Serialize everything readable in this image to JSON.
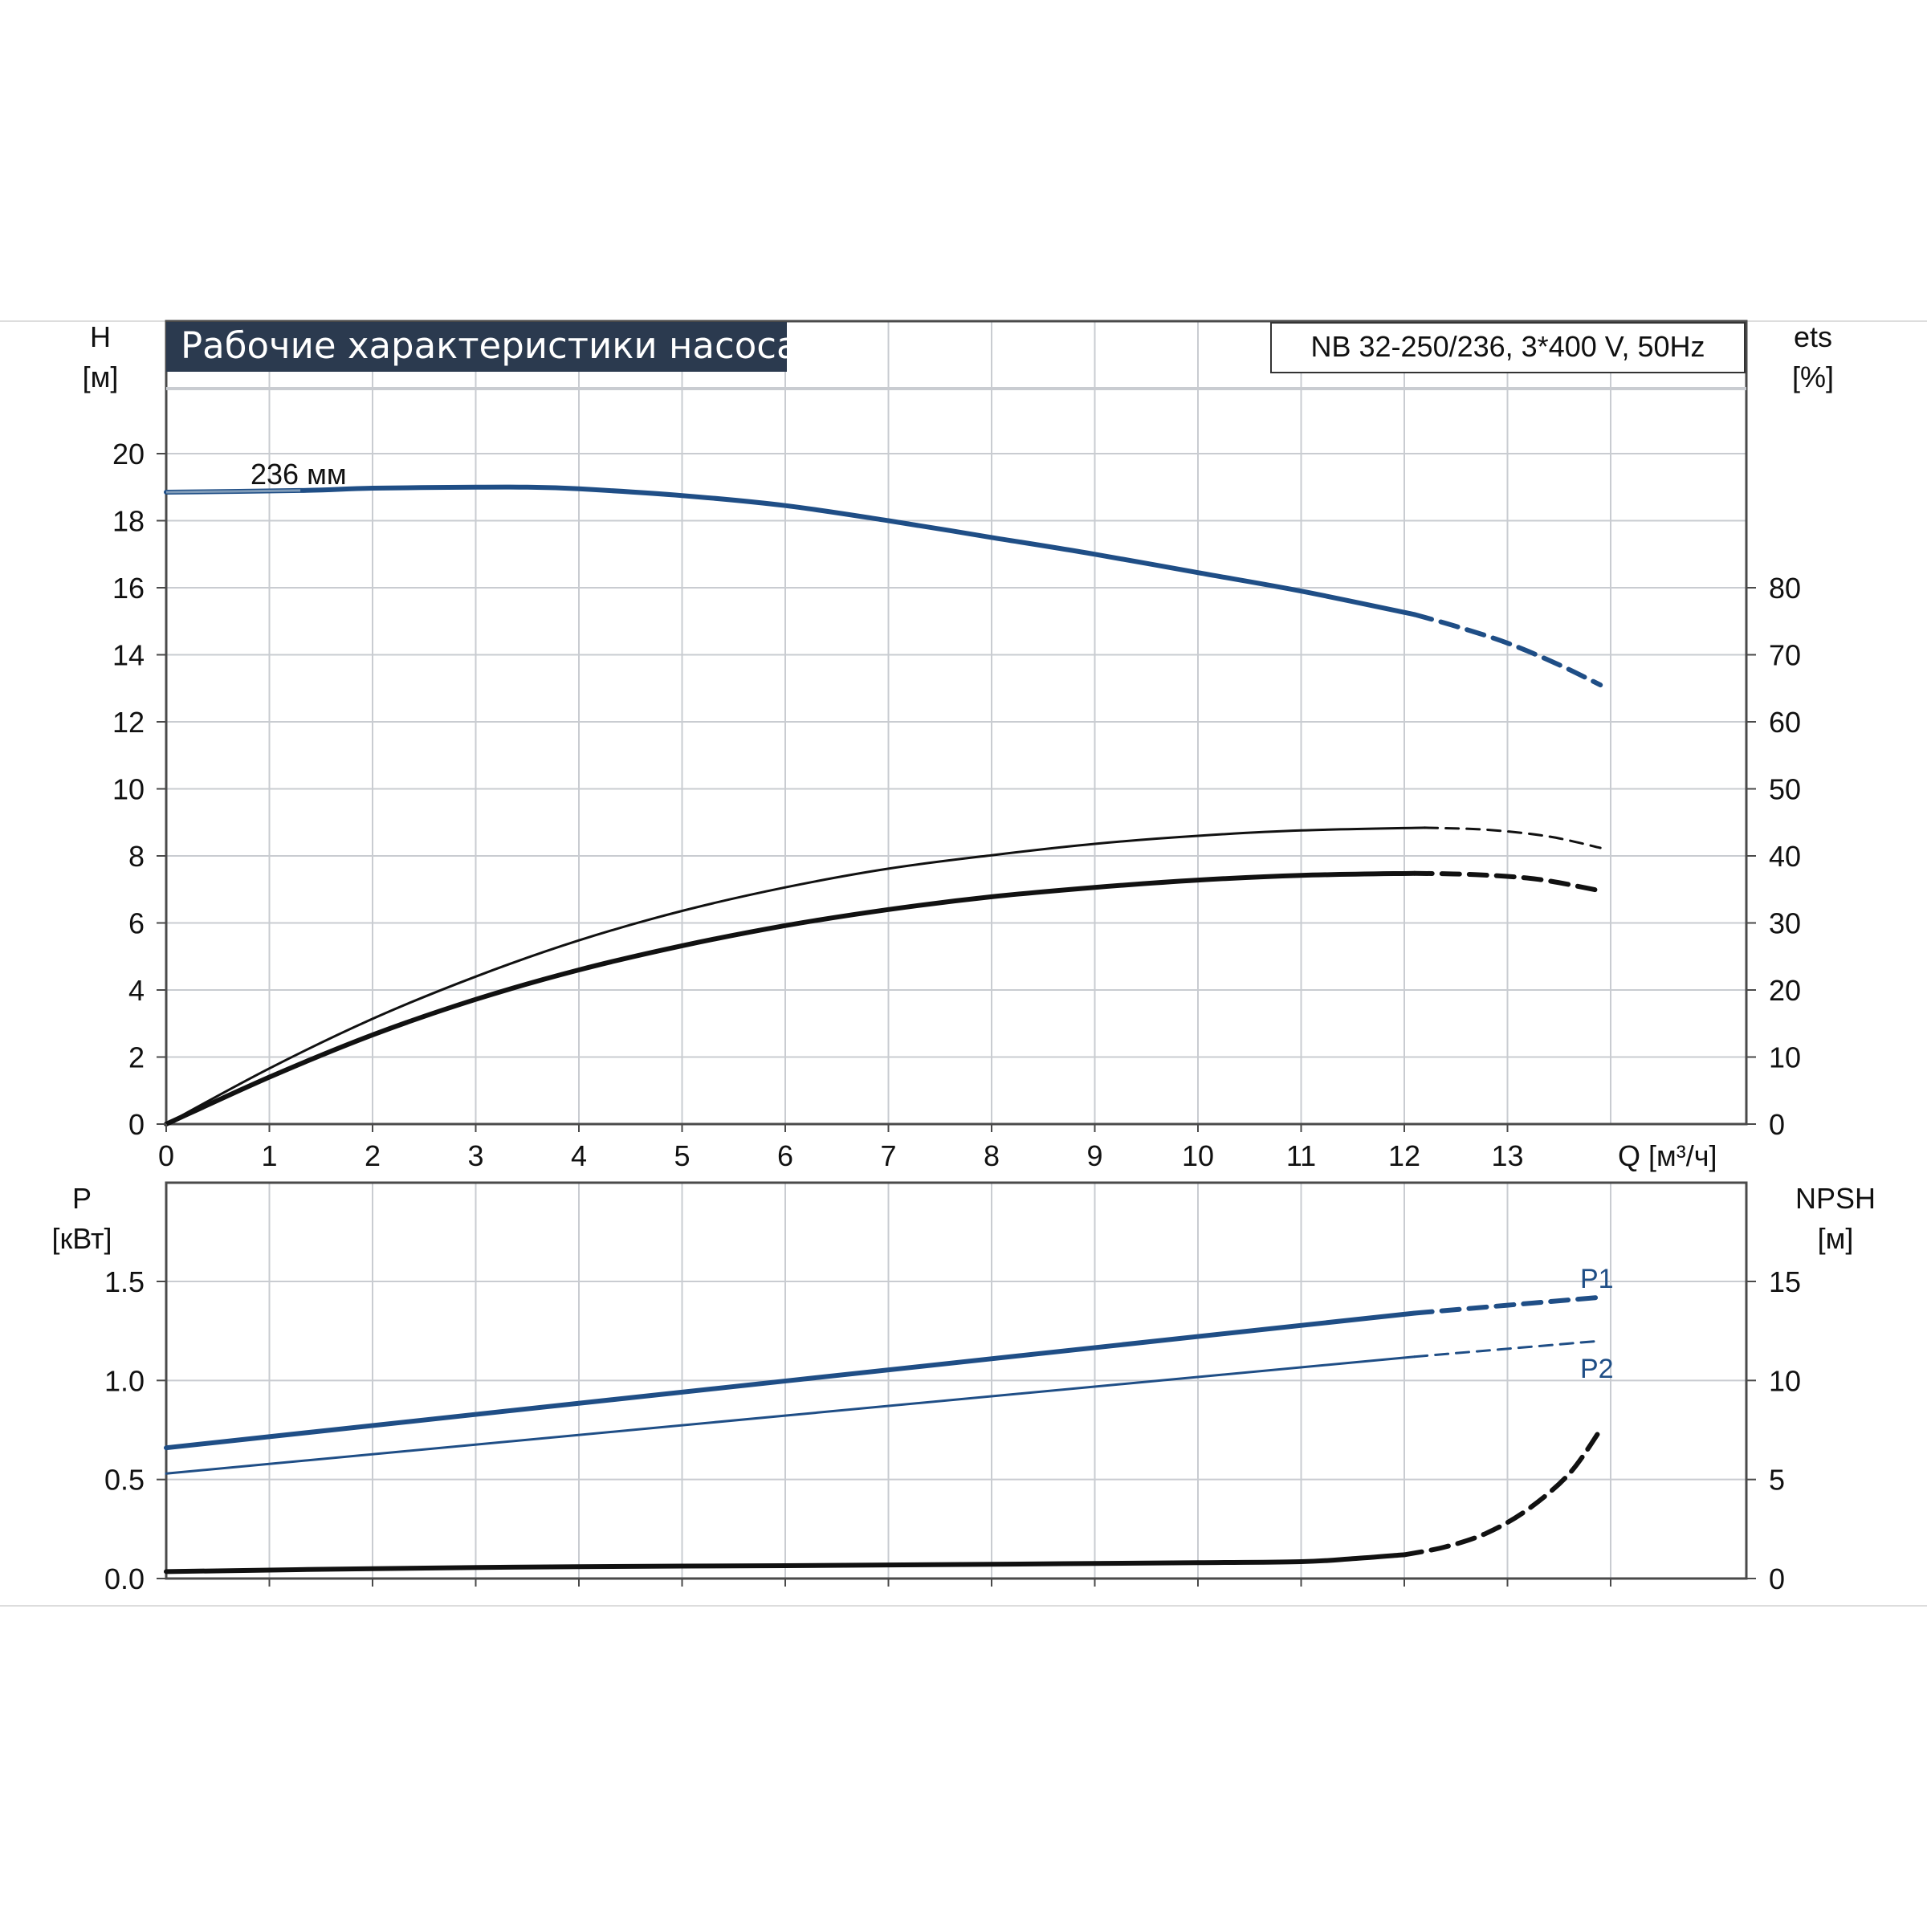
{
  "colors": {
    "blue": "#1f4e86",
    "title_bg": "#2b3a4f",
    "title_fg": "#ffffff",
    "grid": "#c9ccd1",
    "frame": "#4a4a4a",
    "black": "#111111"
  },
  "chart_data": [
    {
      "type": "line",
      "title": "Рабочие характеристики насоса",
      "model_label": "NB 32-250/236, 3*400 V, 50Hz",
      "xlabel": "Q [м³/ч]",
      "xlim": [
        0,
        15
      ],
      "xticks": [
        "0",
        "1",
        "2",
        "3",
        "4",
        "5",
        "6",
        "7",
        "8",
        "9",
        "10",
        "11",
        "12",
        "13"
      ],
      "left_axis": {
        "label_top": "H",
        "label_unit": "[м]",
        "ylim": [
          0,
          22
        ],
        "ticks": [
          "0",
          "2",
          "4",
          "6",
          "8",
          "10",
          "12",
          "14",
          "16",
          "18",
          "20"
        ]
      },
      "right_axis": {
        "label_top": "ets",
        "label_unit": "[%]",
        "ylim": [
          0,
          110
        ],
        "ticks": [
          "0",
          "10",
          "20",
          "30",
          "40",
          "50",
          "60",
          "70",
          "80"
        ]
      },
      "grid": true,
      "annotations": [
        "236 мм"
      ],
      "series": [
        {
          "name": "236 мм",
          "axis": "left",
          "color": "#1f4e86",
          "style": "solid",
          "x": [
            0,
            1.3,
            2,
            3,
            3.5,
            4,
            5,
            6,
            7,
            8,
            9,
            10,
            11,
            12.1
          ],
          "y": [
            18.85,
            18.9,
            18.97,
            19.0,
            19.0,
            18.95,
            18.75,
            18.45,
            18.0,
            17.5,
            17.0,
            16.45,
            15.9,
            15.2
          ]
        },
        {
          "axis": "left",
          "color": "#1f4e86",
          "style": "dashed",
          "x": [
            12.1,
            12.5,
            13,
            13.5,
            13.9
          ],
          "y": [
            15.2,
            14.85,
            14.35,
            13.7,
            13.1
          ]
        },
        {
          "axis": "right",
          "color": "#111111",
          "style": "solid",
          "width": "thin",
          "x": [
            0,
            1,
            2,
            3,
            4,
            5,
            6,
            7,
            8,
            9,
            10,
            11,
            12.2
          ],
          "y": [
            0,
            8.3,
            15.7,
            22.0,
            27.4,
            31.8,
            35.3,
            38.1,
            40.1,
            41.8,
            43.0,
            43.8,
            44.2
          ]
        },
        {
          "axis": "right",
          "color": "#111111",
          "style": "dashed",
          "width": "thin",
          "x": [
            12.2,
            12.8,
            13.4,
            13.9
          ],
          "y": [
            44.2,
            43.9,
            42.9,
            41.2
          ]
        },
        {
          "axis": "right",
          "color": "#111111",
          "style": "solid",
          "width": "thick",
          "x": [
            0,
            1,
            2,
            3,
            4,
            5,
            6,
            7,
            8,
            9,
            10,
            11,
            12.1
          ],
          "y": [
            0,
            7.0,
            13.3,
            18.6,
            23.0,
            26.6,
            29.6,
            32.0,
            33.9,
            35.3,
            36.4,
            37.1,
            37.4
          ]
        },
        {
          "axis": "right",
          "color": "#111111",
          "style": "dashed",
          "width": "thick",
          "x": [
            12.1,
            12.7,
            13.3,
            13.9
          ],
          "y": [
            37.4,
            37.2,
            36.5,
            34.8
          ]
        }
      ]
    },
    {
      "type": "line",
      "xlim": [
        0,
        15
      ],
      "left_axis": {
        "label_top": "P",
        "label_unit": "[кВт]",
        "ylim": [
          0,
          1.98
        ],
        "ticks": [
          "0.0",
          "0.5",
          "1.0",
          "1.5"
        ]
      },
      "right_axis": {
        "label_top": "NPSH",
        "label_unit": "[м]",
        "ylim": [
          0,
          19.8
        ],
        "ticks": [
          "0",
          "5",
          "10",
          "15"
        ]
      },
      "grid": true,
      "series": [
        {
          "name": "P1",
          "axis": "left",
          "color": "#1f4e86",
          "style": "solid",
          "width": "thick",
          "x": [
            0,
            12.1
          ],
          "y": [
            0.66,
            1.34
          ]
        },
        {
          "name": "P1",
          "axis": "left",
          "color": "#1f4e86",
          "style": "dashed",
          "width": "thick",
          "x": [
            12.1,
            13.9
          ],
          "y": [
            1.34,
            1.42
          ]
        },
        {
          "name": "P2",
          "axis": "left",
          "color": "#1f4e86",
          "style": "solid",
          "width": "thin",
          "x": [
            0,
            12.1
          ],
          "y": [
            0.53,
            1.12
          ]
        },
        {
          "name": "P2",
          "axis": "left",
          "color": "#1f4e86",
          "style": "dashed",
          "width": "thin",
          "x": [
            12.1,
            13.9
          ],
          "y": [
            1.12,
            1.2
          ]
        },
        {
          "axis": "right",
          "color": "#111111",
          "style": "solid",
          "width": "thick",
          "x": [
            0,
            2,
            4,
            6,
            8,
            10,
            11,
            11.5,
            12.0
          ],
          "y": [
            0.35,
            0.5,
            0.6,
            0.65,
            0.72,
            0.8,
            0.85,
            1.0,
            1.2
          ]
        },
        {
          "axis": "right",
          "color": "#111111",
          "style": "dashed",
          "width": "thick",
          "x": [
            12.0,
            12.4,
            12.8,
            13.2,
            13.6,
            13.9
          ],
          "y": [
            1.2,
            1.6,
            2.3,
            3.5,
            5.3,
            7.5
          ]
        }
      ],
      "labels": [
        "P1",
        "P2"
      ]
    }
  ]
}
